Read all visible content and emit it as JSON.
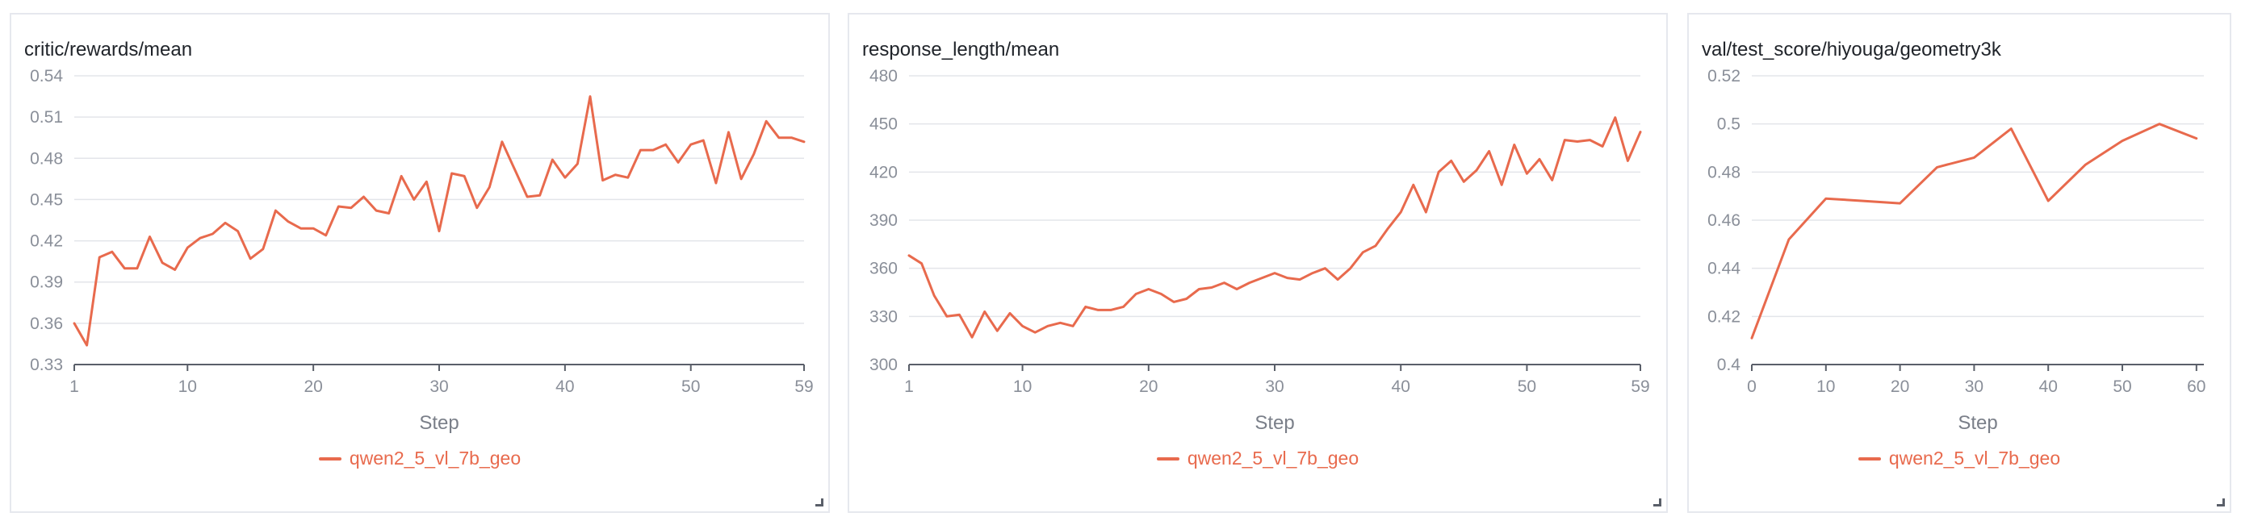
{
  "colors": {
    "series": "#e86a4d",
    "grid": "#e3e5ea",
    "axis": "#8a8f99"
  },
  "chart_data": [
    {
      "type": "line",
      "title": "critic/rewards/mean",
      "xlabel": "Step",
      "ylabel": "",
      "xlim": [
        1,
        59
      ],
      "ylim": [
        0.33,
        0.54
      ],
      "xticks": [
        1,
        10,
        20,
        30,
        40,
        50,
        59
      ],
      "yticks": [
        0.33,
        0.36,
        0.39,
        0.42,
        0.45,
        0.48,
        0.51,
        0.54
      ],
      "ytick_labels": [
        "0.33",
        "0.36",
        "0.39",
        "0.42",
        "0.45",
        "0.48",
        "0.51",
        "0.54"
      ],
      "grid": true,
      "legend_position": "bottom-center",
      "series": [
        {
          "name": "qwen2_5_vl_7b_geo",
          "x": [
            1,
            2,
            3,
            4,
            5,
            6,
            7,
            8,
            9,
            10,
            11,
            12,
            13,
            14,
            15,
            16,
            17,
            18,
            19,
            20,
            21,
            22,
            23,
            24,
            25,
            26,
            27,
            28,
            29,
            30,
            31,
            32,
            33,
            34,
            35,
            36,
            37,
            38,
            39,
            40,
            41,
            42,
            43,
            44,
            45,
            46,
            47,
            48,
            49,
            50,
            51,
            52,
            53,
            54,
            55,
            56,
            57,
            58,
            59
          ],
          "y": [
            0.36,
            0.344,
            0.408,
            0.412,
            0.4,
            0.4,
            0.423,
            0.404,
            0.399,
            0.415,
            0.422,
            0.425,
            0.433,
            0.427,
            0.407,
            0.414,
            0.442,
            0.434,
            0.429,
            0.429,
            0.424,
            0.445,
            0.444,
            0.452,
            0.442,
            0.44,
            0.467,
            0.45,
            0.463,
            0.427,
            0.469,
            0.467,
            0.444,
            0.459,
            0.492,
            0.472,
            0.452,
            0.453,
            0.479,
            0.466,
            0.476,
            0.525,
            0.464,
            0.468,
            0.466,
            0.486,
            0.486,
            0.49,
            0.477,
            0.49,
            0.493,
            0.462,
            0.499,
            0.465,
            0.483,
            0.507,
            0.495,
            0.495,
            0.492
          ]
        }
      ]
    },
    {
      "type": "line",
      "title": "response_length/mean",
      "xlabel": "Step",
      "ylabel": "",
      "xlim": [
        1,
        59
      ],
      "ylim": [
        300,
        480
      ],
      "xticks": [
        1,
        10,
        20,
        30,
        40,
        50,
        59
      ],
      "yticks": [
        300,
        330,
        360,
        390,
        420,
        450,
        480
      ],
      "ytick_labels": [
        "300",
        "330",
        "360",
        "390",
        "420",
        "450",
        "480"
      ],
      "grid": true,
      "legend_position": "bottom-center",
      "series": [
        {
          "name": "qwen2_5_vl_7b_geo",
          "x": [
            1,
            2,
            3,
            4,
            5,
            6,
            7,
            8,
            9,
            10,
            11,
            12,
            13,
            14,
            15,
            16,
            17,
            18,
            19,
            20,
            21,
            22,
            23,
            24,
            25,
            26,
            27,
            28,
            29,
            30,
            31,
            32,
            33,
            34,
            35,
            36,
            37,
            38,
            39,
            40,
            41,
            42,
            43,
            44,
            45,
            46,
            47,
            48,
            49,
            50,
            51,
            52,
            53,
            54,
            55,
            56,
            57,
            58,
            59
          ],
          "y": [
            368,
            363,
            343,
            330,
            331,
            317,
            333,
            321,
            332,
            324,
            320,
            324,
            326,
            324,
            336,
            334,
            334,
            336,
            344,
            347,
            344,
            339,
            341,
            347,
            348,
            351,
            347,
            351,
            354,
            357,
            354,
            353,
            357,
            360,
            353,
            360,
            370,
            374,
            385,
            395,
            412,
            395,
            420,
            427,
            414,
            421,
            433,
            412,
            437,
            419,
            428,
            415,
            440,
            439,
            440,
            436,
            454,
            427,
            445
          ]
        }
      ]
    },
    {
      "type": "line",
      "title": "val/test_score/hiyouga/geometry3k",
      "xlabel": "Step",
      "ylabel": "",
      "xlim": [
        0,
        61
      ],
      "ylim": [
        0.4,
        0.52
      ],
      "xticks": [
        0,
        10,
        20,
        30,
        40,
        50,
        60
      ],
      "yticks": [
        0.4,
        0.42,
        0.44,
        0.46,
        0.48,
        0.5,
        0.52
      ],
      "ytick_labels": [
        "0.4",
        "0.42",
        "0.44",
        "0.46",
        "0.48",
        "0.5",
        "0.52"
      ],
      "grid": true,
      "legend_position": "bottom-center",
      "series": [
        {
          "name": "qwen2_5_vl_7b_geo",
          "x": [
            0,
            5,
            10,
            15,
            20,
            25,
            30,
            35,
            40,
            45,
            50,
            55,
            60
          ],
          "y": [
            0.411,
            0.452,
            0.469,
            0.468,
            0.467,
            0.482,
            0.486,
            0.498,
            0.468,
            0.483,
            0.493,
            0.5,
            0.494
          ]
        }
      ]
    }
  ]
}
